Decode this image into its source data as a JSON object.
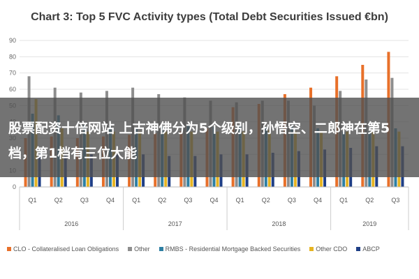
{
  "chart_data": {
    "type": "bar",
    "title": "Chart 3: Top 5 FVC Activity types (Total Debt Securities Issued €bn)",
    "ylim": [
      0,
      90
    ],
    "yticks": [
      0,
      10,
      20,
      30,
      40,
      50,
      60,
      70,
      80,
      90
    ],
    "grid": true,
    "legend_position": "bottom",
    "categories": [
      "Q1",
      "Q2",
      "Q3",
      "Q4",
      "Q1",
      "Q2",
      "Q3",
      "Q4",
      "Q1",
      "Q2",
      "Q3",
      "Q4",
      "Q1",
      "Q2",
      "Q3"
    ],
    "year_groups": [
      {
        "label": "2016",
        "count": 4
      },
      {
        "label": "2017",
        "count": 4
      },
      {
        "label": "2018",
        "count": 4
      },
      {
        "label": "2019",
        "count": 3
      }
    ],
    "series": [
      {
        "name": "CLO - Collateralised Loan Obligations",
        "color": "#e8702a",
        "values": [
          30,
          31,
          30,
          31,
          32,
          33,
          34,
          36,
          49,
          51,
          57,
          61,
          68,
          75,
          83
        ]
      },
      {
        "name": "Other",
        "color": "#8e8e8e",
        "values": [
          68,
          61,
          58,
          59,
          61,
          57,
          55,
          53,
          52,
          53,
          53,
          50,
          59,
          66,
          67
        ]
      },
      {
        "name": "RMBS - Residential Mortgage Backed Securities",
        "color": "#2e7fa3",
        "values": [
          45,
          44,
          38,
          37,
          36,
          37,
          38,
          37,
          38,
          37,
          37,
          36,
          34,
          34,
          36
        ]
      },
      {
        "name": "Other CDO",
        "color": "#e6b422",
        "values": [
          54,
          36,
          34,
          34,
          34,
          34,
          34,
          34,
          34,
          35,
          34,
          34,
          34,
          34,
          34
        ]
      },
      {
        "name": "ABCP",
        "color": "#1f3f86",
        "values": [
          21,
          20,
          20,
          20,
          20,
          19,
          19,
          20,
          20,
          21,
          22,
          23,
          24,
          25,
          25
        ]
      }
    ]
  },
  "overlay": {
    "text": "股票配资十倍网站 上古神佛分为5个级别，孙悟空、二郎神在第5档，第1档有三位大能"
  }
}
